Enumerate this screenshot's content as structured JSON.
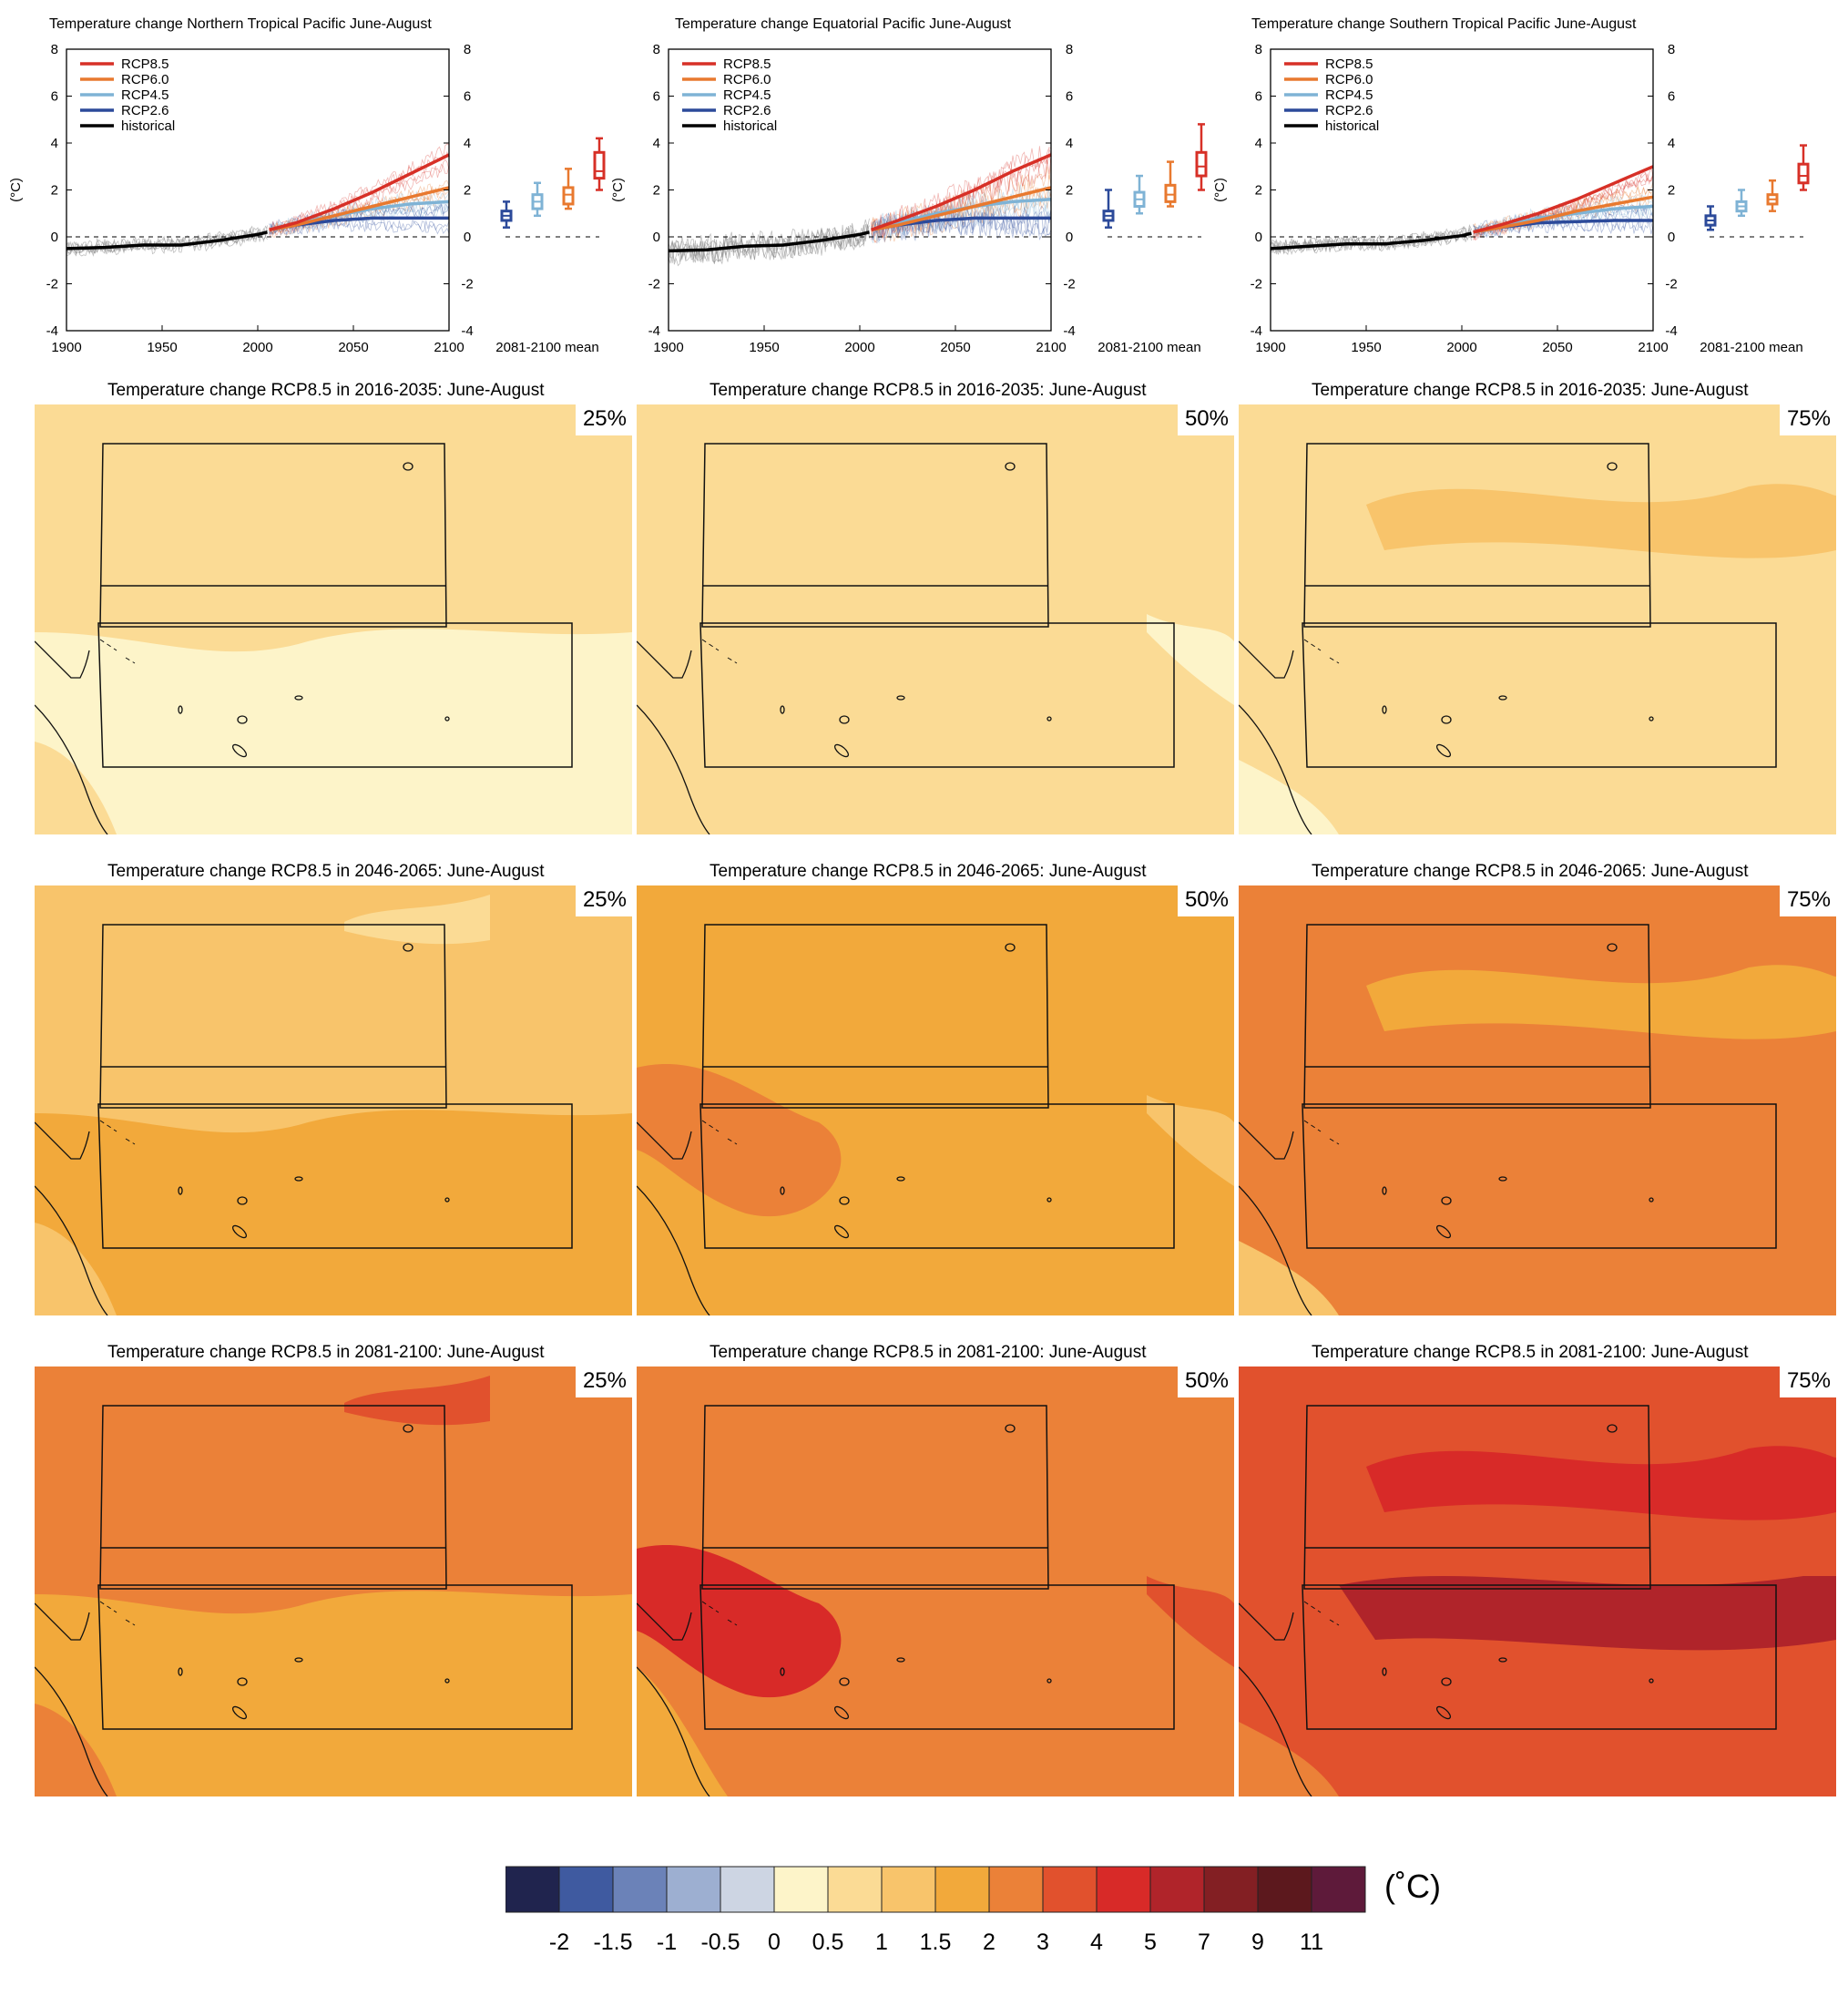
{
  "timeseries_panels": [
    {
      "title": "Temperature change Northern Tropical Pacific June-August"
    },
    {
      "title": "Temperature change Equatorial Pacific June-August"
    },
    {
      "title": "Temperature change Southern Tropical Pacific June-August"
    }
  ],
  "axis": {
    "ylabel": "(°C)",
    "boxplot_label": "2081-2100 mean",
    "y_ticks": [
      "8",
      "6",
      "4",
      "2",
      "0",
      "-2",
      "-4"
    ],
    "x_ticks": [
      "1900",
      "1950",
      "2000",
      "2050",
      "2100"
    ]
  },
  "legend": [
    {
      "name": "RCP8.5",
      "color": "#d73027"
    },
    {
      "name": "RCP6.0",
      "color": "#e8792f"
    },
    {
      "name": "RCP4.5",
      "color": "#7fb3d5"
    },
    {
      "name": "RCP2.6",
      "color": "#2c4a9a"
    },
    {
      "name": "historical",
      "color": "#000000"
    }
  ],
  "map_rows": [
    {
      "title": "Temperature change RCP8.5 in 2016-2035: June-August"
    },
    {
      "title": "Temperature change RCP8.5 in 2046-2065: June-August"
    },
    {
      "title": "Temperature change RCP8.5 in 2081-2100: June-August"
    }
  ],
  "percentiles": [
    "25%",
    "50%",
    "75%"
  ],
  "colorbar": {
    "unit": "(˚C)",
    "colors": [
      "#20244e",
      "#3f5aa0",
      "#6b82b8",
      "#9dafd1",
      "#cdd5e3",
      "#fdf4c9",
      "#fbdb95",
      "#f8c46b",
      "#f2a93b",
      "#eb8138",
      "#e1512d",
      "#d82a28",
      "#b0242a",
      "#831f23",
      "#5c181d",
      "#5e1a3a"
    ],
    "ticks": [
      "-2",
      "-1.5",
      "-1",
      "-0.5",
      "0",
      "0.5",
      "1",
      "1.5",
      "2",
      "3",
      "4",
      "5",
      "7",
      "9",
      "11"
    ]
  },
  "chart_data": [
    {
      "type": "line",
      "title": "Temperature change Northern Tropical Pacific June-August",
      "ylabel": "(°C)",
      "xlim": [
        1900,
        2100
      ],
      "ylim": [
        -4,
        8
      ],
      "series": [
        {
          "name": "historical",
          "x": [
            1900,
            1920,
            1940,
            1960,
            1980,
            2000,
            2005
          ],
          "values": [
            -0.5,
            -0.45,
            -0.35,
            -0.35,
            -0.15,
            0.1,
            0.2
          ]
        },
        {
          "name": "RCP8.5",
          "x": [
            2006,
            2020,
            2040,
            2060,
            2080,
            2100
          ],
          "values": [
            0.3,
            0.6,
            1.2,
            1.9,
            2.7,
            3.5
          ]
        },
        {
          "name": "RCP6.0",
          "x": [
            2006,
            2020,
            2040,
            2060,
            2080,
            2100
          ],
          "values": [
            0.3,
            0.5,
            0.9,
            1.3,
            1.7,
            2.1
          ]
        },
        {
          "name": "RCP4.5",
          "x": [
            2006,
            2020,
            2040,
            2060,
            2080,
            2100
          ],
          "values": [
            0.3,
            0.55,
            0.9,
            1.2,
            1.4,
            1.5
          ]
        },
        {
          "name": "RCP2.6",
          "x": [
            2006,
            2020,
            2040,
            2060,
            2080,
            2100
          ],
          "values": [
            0.3,
            0.5,
            0.7,
            0.8,
            0.8,
            0.8
          ]
        }
      ],
      "boxplots_2081_2100": [
        {
          "name": "RCP2.6",
          "min": 0.4,
          "q1": 0.7,
          "median": 0.9,
          "q3": 1.1,
          "max": 1.5
        },
        {
          "name": "RCP4.5",
          "min": 0.9,
          "q1": 1.2,
          "median": 1.5,
          "q3": 1.8,
          "max": 2.3
        },
        {
          "name": "RCP6.0",
          "min": 1.2,
          "q1": 1.4,
          "median": 1.8,
          "q3": 2.1,
          "max": 2.9
        },
        {
          "name": "RCP8.5",
          "min": 2.0,
          "q1": 2.5,
          "median": 2.8,
          "q3": 3.6,
          "max": 4.2
        }
      ]
    },
    {
      "type": "line",
      "title": "Temperature change Equatorial Pacific June-August",
      "ylabel": "(°C)",
      "xlim": [
        1900,
        2100
      ],
      "ylim": [
        -4,
        8
      ],
      "series": [
        {
          "name": "historical",
          "x": [
            1900,
            1920,
            1940,
            1960,
            1980,
            2000,
            2005
          ],
          "values": [
            -0.6,
            -0.55,
            -0.4,
            -0.35,
            -0.15,
            0.1,
            0.2
          ]
        },
        {
          "name": "RCP8.5",
          "x": [
            2006,
            2020,
            2040,
            2060,
            2080,
            2100
          ],
          "values": [
            0.3,
            0.7,
            1.3,
            2.0,
            2.8,
            3.5
          ]
        },
        {
          "name": "RCP6.0",
          "x": [
            2006,
            2020,
            2040,
            2060,
            2080,
            2100
          ],
          "values": [
            0.3,
            0.5,
            0.9,
            1.3,
            1.7,
            2.1
          ]
        },
        {
          "name": "RCP4.5",
          "x": [
            2006,
            2020,
            2040,
            2060,
            2080,
            2100
          ],
          "values": [
            0.3,
            0.6,
            1.0,
            1.3,
            1.5,
            1.6
          ]
        },
        {
          "name": "RCP2.6",
          "x": [
            2006,
            2020,
            2040,
            2060,
            2080,
            2100
          ],
          "values": [
            0.3,
            0.5,
            0.7,
            0.8,
            0.8,
            0.8
          ]
        }
      ],
      "boxplots_2081_2100": [
        {
          "name": "RCP2.6",
          "min": 0.4,
          "q1": 0.7,
          "median": 0.9,
          "q3": 1.1,
          "max": 2.0
        },
        {
          "name": "RCP4.5",
          "min": 1.0,
          "q1": 1.3,
          "median": 1.6,
          "q3": 1.9,
          "max": 2.6
        },
        {
          "name": "RCP6.0",
          "min": 1.3,
          "q1": 1.5,
          "median": 1.8,
          "q3": 2.2,
          "max": 3.2
        },
        {
          "name": "RCP8.5",
          "min": 2.0,
          "q1": 2.6,
          "median": 3.0,
          "q3": 3.6,
          "max": 4.8
        }
      ]
    },
    {
      "type": "line",
      "title": "Temperature change Southern Tropical Pacific June-August",
      "ylabel": "(°C)",
      "xlim": [
        1900,
        2100
      ],
      "ylim": [
        -4,
        8
      ],
      "series": [
        {
          "name": "historical",
          "x": [
            1900,
            1920,
            1940,
            1960,
            1980,
            2000,
            2005
          ],
          "values": [
            -0.5,
            -0.4,
            -0.3,
            -0.3,
            -0.15,
            0.05,
            0.15
          ]
        },
        {
          "name": "RCP8.5",
          "x": [
            2006,
            2020,
            2040,
            2060,
            2080,
            2100
          ],
          "values": [
            0.2,
            0.5,
            1.0,
            1.6,
            2.3,
            3.0
          ]
        },
        {
          "name": "RCP6.0",
          "x": [
            2006,
            2020,
            2040,
            2060,
            2080,
            2100
          ],
          "values": [
            0.2,
            0.4,
            0.7,
            1.1,
            1.4,
            1.7
          ]
        },
        {
          "name": "RCP4.5",
          "x": [
            2006,
            2020,
            2040,
            2060,
            2080,
            2100
          ],
          "values": [
            0.2,
            0.45,
            0.8,
            1.0,
            1.2,
            1.3
          ]
        },
        {
          "name": "RCP2.6",
          "x": [
            2006,
            2020,
            2040,
            2060,
            2080,
            2100
          ],
          "values": [
            0.2,
            0.4,
            0.6,
            0.65,
            0.7,
            0.7
          ]
        }
      ],
      "boxplots_2081_2100": [
        {
          "name": "RCP2.6",
          "min": 0.3,
          "q1": 0.5,
          "median": 0.7,
          "q3": 0.9,
          "max": 1.3
        },
        {
          "name": "RCP4.5",
          "min": 0.9,
          "q1": 1.1,
          "median": 1.3,
          "q3": 1.5,
          "max": 2.0
        },
        {
          "name": "RCP6.0",
          "min": 1.1,
          "q1": 1.4,
          "median": 1.6,
          "q3": 1.8,
          "max": 2.4
        },
        {
          "name": "RCP8.5",
          "min": 2.0,
          "q1": 2.3,
          "median": 2.6,
          "q3": 3.1,
          "max": 3.9
        }
      ]
    },
    {
      "type": "heatmap",
      "title": "Temperature change RCP8.5 in 2016-2035: June-August",
      "panels": [
        {
          "percentile": "25%",
          "background_class": "0.5-1",
          "patches_class": [
            "0-0.5"
          ]
        },
        {
          "percentile": "50%",
          "background_class": "0.5-1",
          "patches_class": [
            "0-0.5"
          ]
        },
        {
          "percentile": "75%",
          "background_class": "0.5-1",
          "patches_class": [
            "1-1.5",
            "0-0.5"
          ]
        }
      ]
    },
    {
      "type": "heatmap",
      "title": "Temperature change RCP8.5 in 2046-2065: June-August",
      "panels": [
        {
          "percentile": "25%",
          "background_class": "1-1.5",
          "patches_class": [
            "1.5-2",
            "0.5-1"
          ]
        },
        {
          "percentile": "50%",
          "background_class": "1.5-2",
          "patches_class": [
            "1-1.5",
            "2-3"
          ]
        },
        {
          "percentile": "75%",
          "background_class": "2-3",
          "patches_class": [
            "1.5-2",
            "1-1.5"
          ]
        }
      ]
    },
    {
      "type": "heatmap",
      "title": "Temperature change RCP8.5 in 2081-2100: June-August",
      "panels": [
        {
          "percentile": "25%",
          "background_class": "2-3",
          "patches_class": [
            "1.5-2",
            "3-4"
          ]
        },
        {
          "percentile": "50%",
          "background_class": "2-3",
          "patches_class": [
            "3-4",
            "4-5",
            "1.5-2"
          ]
        },
        {
          "percentile": "75%",
          "background_class": "3-4",
          "patches_class": [
            "4-5",
            "2-3",
            "5-7"
          ]
        }
      ]
    }
  ]
}
